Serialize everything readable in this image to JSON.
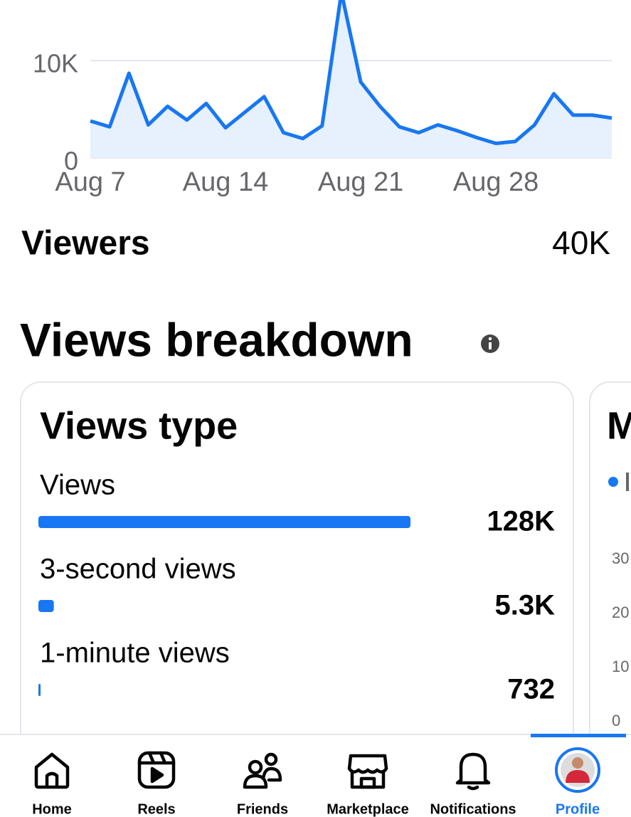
{
  "chart_data": [
    {
      "type": "line",
      "categories": [
        "Aug 7",
        null,
        null,
        null,
        null,
        null,
        null,
        "Aug 14",
        null,
        null,
        null,
        null,
        null,
        null,
        "Aug 21",
        null,
        null,
        null,
        null,
        null,
        null,
        "Aug 28",
        null,
        null,
        null,
        null,
        null,
        null
      ],
      "values": [
        3800,
        3200,
        8700,
        3400,
        5300,
        3900,
        5600,
        3100,
        4700,
        6300,
        2600,
        2000,
        3300,
        17000,
        7800,
        5300,
        3200,
        2600,
        3400,
        2800,
        2100,
        1500,
        1700,
        3400,
        6600,
        4400,
        4400,
        4100
      ],
      "color": "#1877f2",
      "fill": "#e7f0fd",
      "ylim": [
        0,
        16000
      ],
      "yticks": [
        0,
        {
          "value": 10000,
          "label": "10K"
        }
      ],
      "grid": true
    },
    {
      "type": "bar",
      "title": "Views type",
      "categories": [
        "Views",
        "3-second views",
        "1-minute views"
      ],
      "values": [
        128000,
        5300,
        732
      ],
      "value_labels": [
        "128K",
        "5.3K",
        "732"
      ],
      "color": "#1877f2",
      "xlim": [
        0,
        128000
      ]
    }
  ],
  "summary": {
    "label": "Viewers",
    "value": "40K"
  },
  "section_title": "Views breakdown",
  "next_card": {
    "title": "M",
    "yticks": [
      "30",
      "20",
      "10",
      "0"
    ]
  },
  "nav": {
    "items": [
      "Home",
      "Reels",
      "Friends",
      "Marketplace",
      "Notifications",
      "Profile"
    ],
    "active": 5
  }
}
